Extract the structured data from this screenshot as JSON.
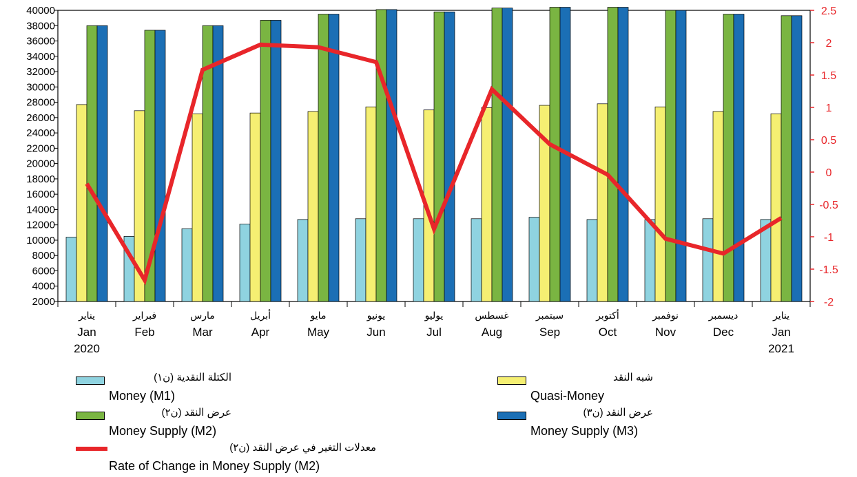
{
  "chart_data": {
    "type": "bar+line",
    "title": "",
    "categories": [
      {
        "ar": "يناير",
        "en": "Jan",
        "year": "2020"
      },
      {
        "ar": "فبراير",
        "en": "Feb",
        "year": ""
      },
      {
        "ar": "مارس",
        "en": "Mar",
        "year": ""
      },
      {
        "ar": "أبريل",
        "en": "Apr",
        "year": ""
      },
      {
        "ar": "مايو",
        "en": "May",
        "year": ""
      },
      {
        "ar": "يونيو",
        "en": "Jun",
        "year": ""
      },
      {
        "ar": "يوليو",
        "en": "Jul",
        "year": ""
      },
      {
        "ar": "غسطس",
        "en": "Aug",
        "year": ""
      },
      {
        "ar": "سبتمبر",
        "en": "Sep",
        "year": ""
      },
      {
        "ar": "أكتوبر",
        "en": "Oct",
        "year": ""
      },
      {
        "ar": "نوفمبر",
        "en": "Nov",
        "year": ""
      },
      {
        "ar": "ديسمبر",
        "en": "Dec",
        "year": ""
      },
      {
        "ar": "يناير",
        "en": "Jan",
        "year": "2021"
      }
    ],
    "left_axis": {
      "min": 2000,
      "max": 40000,
      "step": 2000,
      "ticks": [
        "2000",
        "4000",
        "6000",
        "8000",
        "10000",
        "12000",
        "14000",
        "16000",
        "18000",
        "20000",
        "22000",
        "24000",
        "26000",
        "28000",
        "30000",
        "32000",
        "34000",
        "36000",
        "38000",
        "40000"
      ]
    },
    "right_axis": {
      "min": -2,
      "max": 2.5,
      "step": 0.5,
      "ticks": [
        "-2",
        "-1.5",
        "-1",
        "-0.5",
        "0",
        "0.5",
        "1",
        "1.5",
        "2",
        "2.5"
      ],
      "color": "#e8262a"
    },
    "series": [
      {
        "name_ar": "الكتلة النقدية (ن١)",
        "name": "Money (M1)",
        "kind": "bar",
        "axis": "left",
        "color": "#8fd3e0",
        "values": [
          10400,
          10500,
          11500,
          12100,
          12700,
          12800,
          12800,
          12800,
          13000,
          12700,
          12700,
          12800,
          12700
        ]
      },
      {
        "name_ar": "شبه النقد",
        "name": "Quasi-Money",
        "kind": "bar",
        "axis": "left",
        "color": "#f5ef72",
        "values": [
          27700,
          26900,
          26500,
          26600,
          26800,
          27400,
          27000,
          27300,
          27600,
          27800,
          27400,
          26800,
          26500
        ]
      },
      {
        "name_ar": "عرض النقد (ن٢)",
        "name": "Money Supply (M2)",
        "kind": "bar",
        "axis": "left",
        "color": "#7ab542",
        "values": [
          38000,
          37400,
          38000,
          38700,
          39500,
          40100,
          39800,
          40300,
          40400,
          40400,
          40000,
          39500,
          39300
        ]
      },
      {
        "name_ar": "عرض النقد (ن٣)",
        "name": "Money Supply (M3)",
        "kind": "bar",
        "axis": "left",
        "color": "#1b6fb5",
        "values": [
          38000,
          37400,
          38000,
          38700,
          39500,
          40100,
          39800,
          40300,
          40400,
          40400,
          40000,
          39500,
          39300
        ]
      },
      {
        "name_ar": "معدلات التغير في عرض النقد (ن٢)",
        "name": "Rate of Change in Money Supply (M2)",
        "kind": "line",
        "axis": "right",
        "color": "#e8262a",
        "values": [
          -0.18,
          -1.67,
          1.58,
          1.97,
          1.93,
          1.7,
          -0.88,
          1.28,
          0.43,
          -0.04,
          -1.03,
          -1.26,
          -0.71
        ]
      }
    ],
    "grid": false,
    "legend_position": "bottom"
  }
}
